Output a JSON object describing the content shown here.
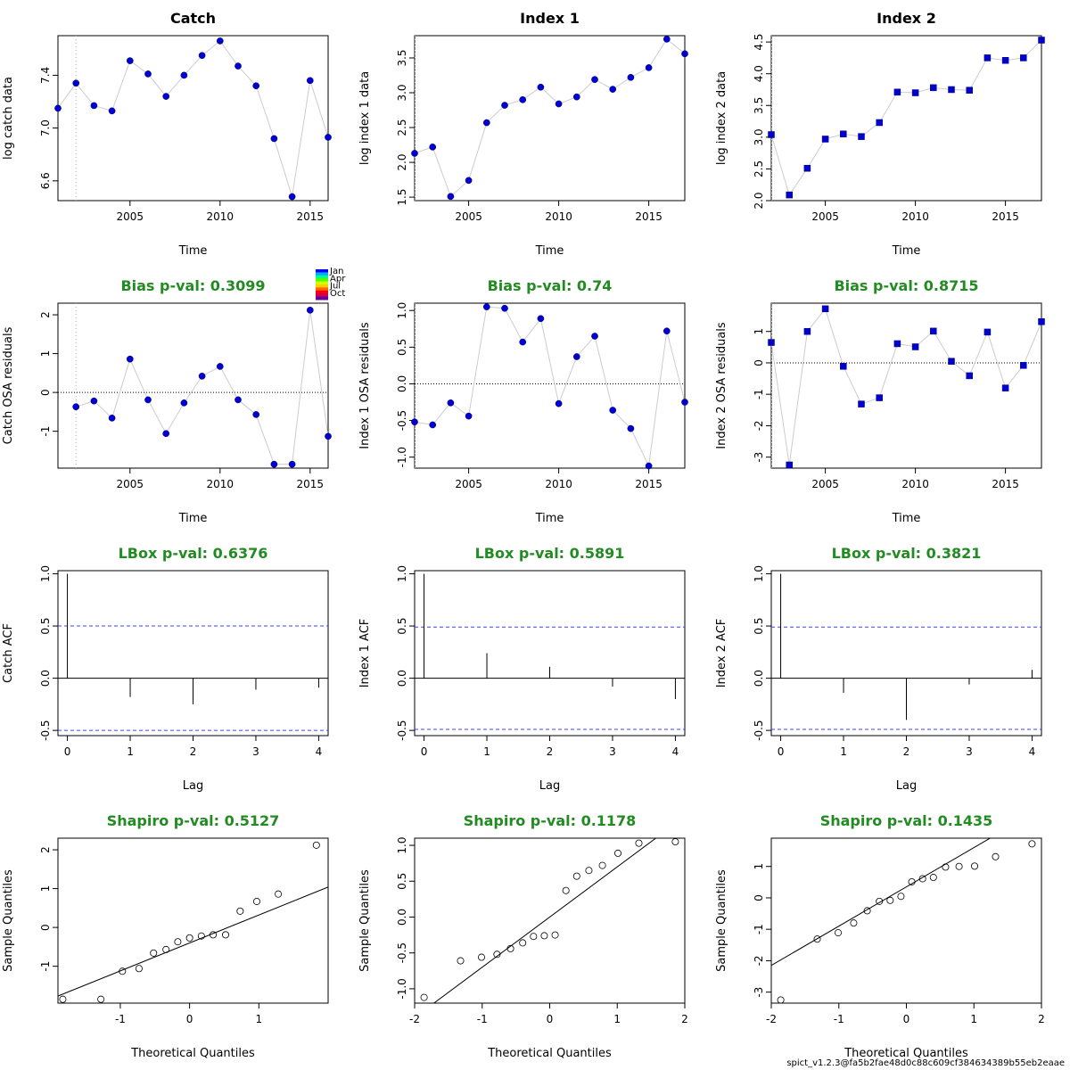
{
  "footer": "spict_v1.2.3@fa5b2fae48d0c88c609cf384634389b55eb2eaae",
  "colors": {
    "point_fill": "#0000CD",
    "point_stroke": "#00008B",
    "line": "#cccccc",
    "title_green": "#228B22",
    "ci_blue": "#4040ff",
    "axis": "#000000"
  },
  "legend": {
    "labels": [
      "Jan",
      "Apr",
      "Jul",
      "Oct"
    ],
    "colors": [
      "#0000ff",
      "#00aaff",
      "#00ff88",
      "#55ff00",
      "#ccff00",
      "#ffcc00",
      "#ff6600",
      "#ff0000",
      "#cc0055",
      "#660099"
    ]
  },
  "chart_data": [
    {
      "id": "catch-data",
      "type": "line",
      "title": "Catch",
      "title_color": "black",
      "xlabel": "Time",
      "ylabel": "log catch data",
      "xlim": [
        2001,
        2016
      ],
      "ylim": [
        6.45,
        7.7
      ],
      "xticks": [
        2005,
        2010,
        2015
      ],
      "yticks": [
        6.6,
        7.0,
        7.4
      ],
      "vline": 2002,
      "marker": "circle",
      "x": [
        2001,
        2002,
        2003,
        2004,
        2005,
        2006,
        2007,
        2008,
        2009,
        2010,
        2011,
        2012,
        2013,
        2014,
        2015,
        2016
      ],
      "y": [
        7.15,
        7.34,
        7.17,
        7.13,
        7.51,
        7.41,
        7.24,
        7.4,
        7.55,
        7.66,
        7.47,
        7.32,
        6.92,
        6.48,
        7.36,
        6.93
      ]
    },
    {
      "id": "index1-data",
      "type": "line",
      "title": "Index 1",
      "title_color": "black",
      "xlabel": "Time",
      "ylabel": "log index 1 data",
      "xlim": [
        2002,
        2017
      ],
      "ylim": [
        1.45,
        3.82
      ],
      "xticks": [
        2005,
        2010,
        2015
      ],
      "yticks": [
        1.5,
        2.0,
        2.5,
        3.0,
        3.5
      ],
      "vline": 2002,
      "marker": "circle",
      "x": [
        2002,
        2003,
        2004,
        2005,
        2006,
        2007,
        2008,
        2009,
        2010,
        2011,
        2012,
        2013,
        2014,
        2015,
        2016,
        2017
      ],
      "y": [
        2.13,
        2.22,
        1.51,
        1.74,
        2.57,
        2.82,
        2.9,
        3.08,
        2.84,
        2.94,
        3.19,
        3.05,
        3.22,
        3.36,
        3.77,
        3.56
      ]
    },
    {
      "id": "index2-data",
      "type": "line",
      "title": "Index 2",
      "title_color": "black",
      "xlabel": "Time",
      "ylabel": "log index 2 data",
      "xlim": [
        2002,
        2017
      ],
      "ylim": [
        2.0,
        4.6
      ],
      "xticks": [
        2005,
        2010,
        2015
      ],
      "yticks": [
        2.0,
        2.5,
        3.0,
        3.5,
        4.0,
        4.5
      ],
      "vline": 2002,
      "marker": "square",
      "x": [
        2002,
        2003,
        2004,
        2005,
        2006,
        2007,
        2008,
        2009,
        2010,
        2011,
        2012,
        2013,
        2014,
        2015,
        2016,
        2017
      ],
      "y": [
        3.04,
        2.09,
        2.51,
        2.97,
        3.05,
        3.01,
        3.23,
        3.71,
        3.7,
        3.78,
        3.75,
        3.74,
        4.25,
        4.21,
        4.25,
        4.53
      ]
    },
    {
      "id": "catch-osa",
      "type": "line",
      "title": "Bias p-val: 0.3099",
      "title_color": "green",
      "xlabel": "Time",
      "ylabel": "Catch OSA residuals",
      "xlim": [
        2001,
        2016
      ],
      "ylim": [
        -1.95,
        2.3
      ],
      "xticks": [
        2005,
        2010,
        2015
      ],
      "yticks": [
        -1,
        0,
        1,
        2
      ],
      "vline": 2002,
      "hline": 0,
      "marker": "circle",
      "show_legend": true,
      "x": [
        2002,
        2003,
        2004,
        2005,
        2006,
        2007,
        2008,
        2009,
        2010,
        2011,
        2012,
        2013,
        2014,
        2015,
        2016
      ],
      "y": [
        -0.37,
        -0.22,
        -0.66,
        0.86,
        -0.19,
        -1.06,
        -0.27,
        0.42,
        0.67,
        -0.19,
        -0.57,
        -1.85,
        -1.85,
        2.12,
        -1.13
      ]
    },
    {
      "id": "index1-osa",
      "type": "line",
      "title": "Bias p-val: 0.74",
      "title_color": "green",
      "xlabel": "Time",
      "ylabel": "Index 1 OSA residuals",
      "xlim": [
        2002,
        2017
      ],
      "ylim": [
        -1.15,
        1.1
      ],
      "xticks": [
        2005,
        2010,
        2015
      ],
      "yticks": [
        -1.0,
        -0.5,
        0.0,
        0.5,
        1.0
      ],
      "vline": 2002,
      "hline": 0,
      "marker": "circle",
      "x": [
        2002,
        2003,
        2004,
        2005,
        2006,
        2007,
        2008,
        2009,
        2010,
        2011,
        2012,
        2013,
        2014,
        2015,
        2016,
        2017
      ],
      "y": [
        -0.52,
        -0.56,
        -0.26,
        -0.44,
        1.05,
        1.03,
        0.57,
        0.89,
        -0.27,
        0.37,
        0.65,
        -0.36,
        -0.61,
        -1.12,
        0.72,
        -0.25
      ]
    },
    {
      "id": "index2-osa",
      "type": "line",
      "title": "Bias p-val: 0.8715",
      "title_color": "green",
      "xlabel": "Time",
      "ylabel": "Index 2 OSA residuals",
      "xlim": [
        2002,
        2017
      ],
      "ylim": [
        -3.35,
        1.9
      ],
      "xticks": [
        2005,
        2010,
        2015
      ],
      "yticks": [
        -3,
        -2,
        -1,
        0,
        1
      ],
      "vline": 2002,
      "hline": 0,
      "marker": "square",
      "x": [
        2002,
        2003,
        2004,
        2005,
        2006,
        2007,
        2008,
        2009,
        2010,
        2011,
        2012,
        2013,
        2014,
        2015,
        2016,
        2017
      ],
      "y": [
        0.65,
        -3.25,
        1.0,
        1.72,
        -0.11,
        -1.31,
        -1.11,
        0.61,
        0.51,
        1.01,
        0.05,
        -0.41,
        0.98,
        -0.8,
        -0.08,
        1.31
      ]
    },
    {
      "id": "catch-acf",
      "type": "bar",
      "title": "LBox p-val: 0.6376",
      "title_color": "green",
      "xlabel": "Lag",
      "ylabel": "Catch ACF",
      "xlim": [
        -0.15,
        4.15
      ],
      "ylim": [
        -0.55,
        1.03
      ],
      "xticks": [
        0,
        1,
        2,
        3,
        4
      ],
      "yticks": [
        -0.5,
        0.0,
        0.5,
        1.0
      ],
      "ci": 0.5,
      "lags": [
        0,
        1,
        2,
        3,
        4
      ],
      "acf": [
        1.0,
        -0.18,
        -0.25,
        -0.11,
        -0.09
      ]
    },
    {
      "id": "index1-acf",
      "type": "bar",
      "title": "LBox p-val: 0.5891",
      "title_color": "green",
      "xlabel": "Lag",
      "ylabel": "Index 1 ACF",
      "xlim": [
        -0.15,
        4.15
      ],
      "ylim": [
        -0.55,
        1.03
      ],
      "xticks": [
        0,
        1,
        2,
        3,
        4
      ],
      "yticks": [
        -0.5,
        0.0,
        0.5,
        1.0
      ],
      "ci": 0.49,
      "lags": [
        0,
        1,
        2,
        3,
        4
      ],
      "acf": [
        1.0,
        0.24,
        0.11,
        -0.08,
        -0.2
      ]
    },
    {
      "id": "index2-acf",
      "type": "bar",
      "title": "LBox p-val: 0.3821",
      "title_color": "green",
      "xlabel": "Lag",
      "ylabel": "Index 2 ACF",
      "xlim": [
        -0.15,
        4.15
      ],
      "ylim": [
        -0.55,
        1.03
      ],
      "xticks": [
        0,
        1,
        2,
        3,
        4
      ],
      "yticks": [
        -0.5,
        0.0,
        0.5,
        1.0
      ],
      "ci": 0.49,
      "lags": [
        0,
        1,
        2,
        3,
        4
      ],
      "acf": [
        1.0,
        -0.14,
        -0.4,
        -0.06,
        0.08
      ]
    },
    {
      "id": "catch-qq",
      "type": "scatter",
      "title": "Shapiro p-val: 0.5127",
      "title_color": "green",
      "xlabel": "Theoretical Quantiles",
      "ylabel": "Sample Quantiles",
      "xlim": [
        -1.9,
        2.0
      ],
      "ylim": [
        -1.95,
        2.3
      ],
      "xticks": [
        -1,
        0,
        1
      ],
      "yticks": [
        -1,
        0,
        1,
        2
      ],
      "marker": "open-circle",
      "x": [
        -1.83,
        -1.28,
        -0.97,
        -0.73,
        -0.52,
        -0.34,
        -0.17,
        0.0,
        0.17,
        0.34,
        0.52,
        0.73,
        0.97,
        1.28,
        1.83
      ],
      "y": [
        -1.85,
        -1.85,
        -1.13,
        -1.06,
        -0.66,
        -0.57,
        -0.37,
        -0.27,
        -0.22,
        -0.19,
        -0.19,
        0.42,
        0.67,
        0.86,
        2.12
      ],
      "qqline": {
        "slope": 0.72,
        "intercept": -0.4
      }
    },
    {
      "id": "index1-qq",
      "type": "scatter",
      "title": "Shapiro p-val: 0.1178",
      "title_color": "green",
      "xlabel": "Theoretical Quantiles",
      "ylabel": "Sample Quantiles",
      "xlim": [
        -2.0,
        2.0
      ],
      "ylim": [
        -1.2,
        1.1
      ],
      "xticks": [
        -2,
        -1,
        0,
        1,
        2
      ],
      "yticks": [
        -1.0,
        -0.5,
        0.0,
        0.5,
        1.0
      ],
      "marker": "open-circle",
      "x": [
        -1.86,
        -1.32,
        -1.01,
        -0.78,
        -0.58,
        -0.4,
        -0.24,
        -0.08,
        0.08,
        0.24,
        0.4,
        0.58,
        0.78,
        1.01,
        1.32,
        1.86
      ],
      "y": [
        -1.12,
        -0.61,
        -0.56,
        -0.52,
        -0.44,
        -0.36,
        -0.27,
        -0.26,
        -0.25,
        0.37,
        0.57,
        0.65,
        0.72,
        0.89,
        1.03,
        1.05
      ],
      "qqline": {
        "slope": 0.7,
        "intercept": 0.0
      }
    },
    {
      "id": "index2-qq",
      "type": "scatter",
      "title": "Shapiro p-val: 0.1435",
      "title_color": "green",
      "xlabel": "Theoretical Quantiles",
      "ylabel": "Sample Quantiles",
      "xlim": [
        -2.0,
        2.0
      ],
      "ylim": [
        -3.35,
        1.9
      ],
      "xticks": [
        -2,
        -1,
        0,
        1,
        2
      ],
      "yticks": [
        -3,
        -2,
        -1,
        0,
        1
      ],
      "marker": "open-circle",
      "x": [
        -1.86,
        -1.32,
        -1.01,
        -0.78,
        -0.58,
        -0.4,
        -0.24,
        -0.08,
        0.08,
        0.24,
        0.4,
        0.58,
        0.78,
        1.01,
        1.32,
        1.86
      ],
      "y": [
        -3.25,
        -1.31,
        -1.11,
        -0.8,
        -0.41,
        -0.11,
        -0.08,
        0.05,
        0.51,
        0.61,
        0.65,
        0.98,
        1.0,
        1.01,
        1.31,
        1.72
      ],
      "qqline": {
        "slope": 1.25,
        "intercept": 0.35
      }
    }
  ]
}
